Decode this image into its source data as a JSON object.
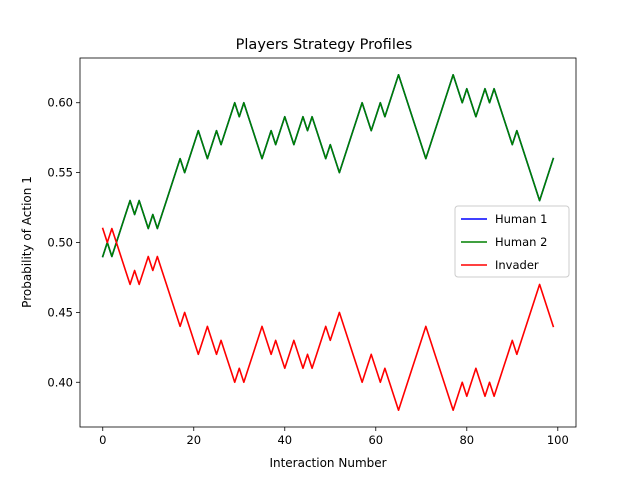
{
  "chart_data": {
    "type": "line",
    "title": "Players Strategy Profiles",
    "xlabel": "Interaction Number",
    "ylabel": "Probability of Action 1",
    "xlim": [
      -5,
      104
    ],
    "ylim": [
      0.368,
      0.632
    ],
    "xticks": [
      0,
      20,
      40,
      60,
      80,
      100
    ],
    "xtick_labels": [
      "0",
      "20",
      "40",
      "60",
      "80",
      "100"
    ],
    "yticks": [
      0.4,
      0.45,
      0.5,
      0.55,
      0.6
    ],
    "ytick_labels": [
      "0.40",
      "0.45",
      "0.50",
      "0.55",
      "0.60"
    ],
    "grid": false,
    "legend_position": "center-right",
    "x": [
      0,
      1,
      2,
      3,
      4,
      5,
      6,
      7,
      8,
      9,
      10,
      11,
      12,
      13,
      14,
      15,
      16,
      17,
      18,
      19,
      20,
      21,
      22,
      23,
      24,
      25,
      26,
      27,
      28,
      29,
      30,
      31,
      32,
      33,
      34,
      35,
      36,
      37,
      38,
      39,
      40,
      41,
      42,
      43,
      44,
      45,
      46,
      47,
      48,
      49,
      50,
      51,
      52,
      53,
      54,
      55,
      56,
      57,
      58,
      59,
      60,
      61,
      62,
      63,
      64,
      65,
      66,
      67,
      68,
      69,
      70,
      71,
      72,
      73,
      74,
      75,
      76,
      77,
      78,
      79,
      80,
      81,
      82,
      83,
      84,
      85,
      86,
      87,
      88,
      89,
      90,
      91,
      92,
      93,
      94,
      95,
      96,
      97,
      98,
      99
    ],
    "series": [
      {
        "name": "Human 1",
        "color": "#0000ff",
        "values": [
          0.49,
          0.5,
          0.49,
          0.5,
          0.51,
          0.52,
          0.53,
          0.52,
          0.53,
          0.52,
          0.51,
          0.52,
          0.51,
          0.52,
          0.53,
          0.54,
          0.55,
          0.56,
          0.55,
          0.56,
          0.57,
          0.58,
          0.57,
          0.56,
          0.57,
          0.58,
          0.57,
          0.58,
          0.59,
          0.6,
          0.59,
          0.6,
          0.59,
          0.58,
          0.57,
          0.56,
          0.57,
          0.58,
          0.57,
          0.58,
          0.59,
          0.58,
          0.57,
          0.58,
          0.59,
          0.58,
          0.59,
          0.58,
          0.57,
          0.56,
          0.57,
          0.56,
          0.55,
          0.56,
          0.57,
          0.58,
          0.59,
          0.6,
          0.59,
          0.58,
          0.59,
          0.6,
          0.59,
          0.6,
          0.61,
          0.62,
          0.61,
          0.6,
          0.59,
          0.58,
          0.57,
          0.56,
          0.57,
          0.58,
          0.59,
          0.6,
          0.61,
          0.62,
          0.61,
          0.6,
          0.61,
          0.6,
          0.59,
          0.6,
          0.61,
          0.6,
          0.61,
          0.6,
          0.59,
          0.58,
          0.57,
          0.58,
          0.57,
          0.56,
          0.55,
          0.54,
          0.53,
          0.54,
          0.55,
          0.56
        ]
      },
      {
        "name": "Human 2",
        "color": "#008000",
        "values": [
          0.49,
          0.5,
          0.49,
          0.5,
          0.51,
          0.52,
          0.53,
          0.52,
          0.53,
          0.52,
          0.51,
          0.52,
          0.51,
          0.52,
          0.53,
          0.54,
          0.55,
          0.56,
          0.55,
          0.56,
          0.57,
          0.58,
          0.57,
          0.56,
          0.57,
          0.58,
          0.57,
          0.58,
          0.59,
          0.6,
          0.59,
          0.6,
          0.59,
          0.58,
          0.57,
          0.56,
          0.57,
          0.58,
          0.57,
          0.58,
          0.59,
          0.58,
          0.57,
          0.58,
          0.59,
          0.58,
          0.59,
          0.58,
          0.57,
          0.56,
          0.57,
          0.56,
          0.55,
          0.56,
          0.57,
          0.58,
          0.59,
          0.6,
          0.59,
          0.58,
          0.59,
          0.6,
          0.59,
          0.6,
          0.61,
          0.62,
          0.61,
          0.6,
          0.59,
          0.58,
          0.57,
          0.56,
          0.57,
          0.58,
          0.59,
          0.6,
          0.61,
          0.62,
          0.61,
          0.6,
          0.61,
          0.6,
          0.59,
          0.6,
          0.61,
          0.6,
          0.61,
          0.6,
          0.59,
          0.58,
          0.57,
          0.58,
          0.57,
          0.56,
          0.55,
          0.54,
          0.53,
          0.54,
          0.55,
          0.56
        ]
      },
      {
        "name": "Invader",
        "color": "#ff0000",
        "values": [
          0.51,
          0.5,
          0.51,
          0.5,
          0.49,
          0.48,
          0.47,
          0.48,
          0.47,
          0.48,
          0.49,
          0.48,
          0.49,
          0.48,
          0.47,
          0.46,
          0.45,
          0.44,
          0.45,
          0.44,
          0.43,
          0.42,
          0.43,
          0.44,
          0.43,
          0.42,
          0.43,
          0.42,
          0.41,
          0.4,
          0.41,
          0.4,
          0.41,
          0.42,
          0.43,
          0.44,
          0.43,
          0.42,
          0.43,
          0.42,
          0.41,
          0.42,
          0.43,
          0.42,
          0.41,
          0.42,
          0.41,
          0.42,
          0.43,
          0.44,
          0.43,
          0.44,
          0.45,
          0.44,
          0.43,
          0.42,
          0.41,
          0.4,
          0.41,
          0.42,
          0.41,
          0.4,
          0.41,
          0.4,
          0.39,
          0.38,
          0.39,
          0.4,
          0.41,
          0.42,
          0.43,
          0.44,
          0.43,
          0.42,
          0.41,
          0.4,
          0.39,
          0.38,
          0.39,
          0.4,
          0.39,
          0.4,
          0.41,
          0.4,
          0.39,
          0.4,
          0.39,
          0.4,
          0.41,
          0.42,
          0.43,
          0.42,
          0.43,
          0.44,
          0.45,
          0.46,
          0.47,
          0.46,
          0.45,
          0.44
        ]
      }
    ]
  }
}
